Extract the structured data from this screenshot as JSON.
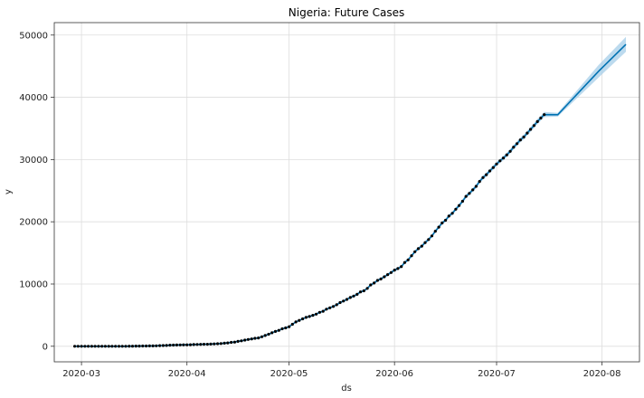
{
  "chart_data": {
    "type": "line",
    "title": "Nigeria: Future Cases",
    "xlabel": "ds",
    "ylabel": "y",
    "x_tick_labels": [
      "2020-03",
      "2020-04",
      "2020-05",
      "2020-06",
      "2020-07",
      "2020-08"
    ],
    "x_tick_dates": [
      "2020-03-01",
      "2020-04-01",
      "2020-05-01",
      "2020-06-01",
      "2020-07-01",
      "2020-08-01"
    ],
    "y_ticks": [
      0,
      10000,
      20000,
      30000,
      40000,
      50000
    ],
    "xlim": [
      "2020-02-22",
      "2020-08-12"
    ],
    "ylim": [
      -2500,
      52000
    ],
    "grid": true,
    "colors": {
      "forecast": "#0072B2",
      "interval": "#a6cde8",
      "observed": "#000000",
      "grid": "#dddddd"
    },
    "observed": {
      "start": "2020-02-28",
      "values": [
        1,
        1,
        1,
        1,
        1,
        1,
        1,
        1,
        1,
        1,
        1,
        2,
        2,
        2,
        2,
        3,
        8,
        12,
        22,
        30,
        40,
        44,
        51,
        65,
        70,
        97,
        111,
        131,
        174,
        184,
        210,
        214,
        232,
        238,
        254,
        276,
        288,
        305,
        318,
        323,
        343,
        373,
        407,
        442,
        493,
        542,
        627,
        665,
        782,
        873,
        981,
        1095,
        1182,
        1273,
        1337,
        1532,
        1728,
        1932,
        2170,
        2388,
        2558,
        2802,
        2950,
        3145,
        3526,
        3912,
        4151,
        4399,
        4641,
        4787,
        4971,
        5162,
        5450,
        5621,
        5959,
        6175,
        6401,
        6677,
        7016,
        7261,
        7526,
        7839,
        8068,
        8344,
        8733,
        8915,
        9302,
        9855,
        10162,
        10578,
        10819,
        11166,
        11516,
        11844,
        12233,
        12486,
        12801,
        13464,
        13873,
        14554,
        15181,
        15682,
        16085,
        16658,
        17148,
        17735,
        18480,
        19147,
        19808,
        20244,
        20919,
        21371,
        22020,
        22614,
        23298,
        24077,
        24567,
        25133,
        25694,
        26484,
        27110,
        27564,
        28167,
        28711,
        29286,
        29789,
        30249,
        30748,
        31323,
        31987,
        32558,
        33153,
        33616,
        34259,
        34854,
        35454,
        36107,
        36663,
        37225
      ]
    },
    "forecast": {
      "x": [
        "2020-07-19",
        "2020-07-31",
        "2020-08-08"
      ],
      "yhat": [
        37200,
        44200,
        48500
      ],
      "yhat_lower": [
        36900,
        43200,
        47300
      ],
      "yhat_upper": [
        37500,
        45200,
        49700
      ]
    }
  }
}
